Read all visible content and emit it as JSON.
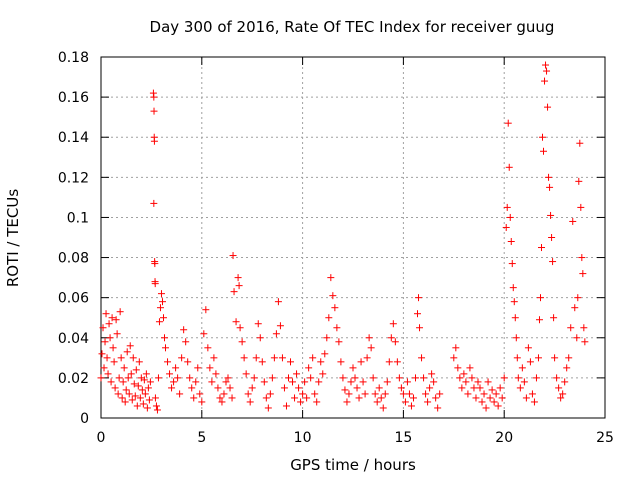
{
  "chart_data": {
    "type": "scatter",
    "title": "Day 300 of 2016, Rate Of TEC Index for receiver guug",
    "xlabel": "GPS time / hours",
    "ylabel": "ROTI / TECUs",
    "xlim": [
      0,
      25
    ],
    "ylim": [
      0,
      0.18
    ],
    "xticks": [
      0,
      5,
      10,
      15,
      20,
      25
    ],
    "xtick_labels": [
      "0",
      "5",
      "10",
      "15",
      "20",
      "25"
    ],
    "yticks": [
      0,
      0.02,
      0.04,
      0.06,
      0.08,
      0.1,
      0.12,
      0.14,
      0.16,
      0.18
    ],
    "ytick_labels": [
      "0",
      "0.02",
      "0.04",
      "0.06",
      "0.08",
      "0.1",
      "0.12",
      "0.14",
      "0.16",
      "0.18"
    ],
    "grid": true,
    "marker": "+",
    "color": "#ff0000",
    "series": [
      {
        "name": "ROTI",
        "points": [
          [
            0.0,
            0.02
          ],
          [
            0.05,
            0.032
          ],
          [
            0.1,
            0.045
          ],
          [
            0.15,
            0.025
          ],
          [
            0.2,
            0.038
          ],
          [
            0.25,
            0.052
          ],
          [
            0.3,
            0.03
          ],
          [
            0.35,
            0.022
          ],
          [
            0.4,
            0.047
          ],
          [
            0.45,
            0.04
          ],
          [
            0.5,
            0.018
          ],
          [
            0.55,
            0.05
          ],
          [
            0.6,
            0.035
          ],
          [
            0.65,
            0.028
          ],
          [
            0.7,
            0.015
          ],
          [
            0.75,
            0.049
          ],
          [
            0.8,
            0.042
          ],
          [
            0.85,
            0.012
          ],
          [
            0.9,
            0.02
          ],
          [
            0.95,
            0.053
          ],
          [
            1.0,
            0.03
          ],
          [
            1.05,
            0.01
          ],
          [
            1.1,
            0.018
          ],
          [
            1.15,
            0.025
          ],
          [
            1.2,
            0.008
          ],
          [
            1.25,
            0.014
          ],
          [
            1.3,
            0.033
          ],
          [
            1.35,
            0.02
          ],
          [
            1.4,
            0.012
          ],
          [
            1.45,
            0.036
          ],
          [
            1.5,
            0.022
          ],
          [
            1.55,
            0.009
          ],
          [
            1.6,
            0.03
          ],
          [
            1.65,
            0.017
          ],
          [
            1.7,
            0.011
          ],
          [
            1.75,
            0.024
          ],
          [
            1.8,
            0.006
          ],
          [
            1.85,
            0.016
          ],
          [
            1.9,
            0.028
          ],
          [
            1.95,
            0.01
          ],
          [
            2.0,
            0.02
          ],
          [
            2.05,
            0.014
          ],
          [
            2.1,
            0.007
          ],
          [
            2.15,
            0.019
          ],
          [
            2.2,
            0.012
          ],
          [
            2.25,
            0.022
          ],
          [
            2.3,
            0.005
          ],
          [
            2.35,
            0.015
          ],
          [
            2.4,
            0.009
          ],
          [
            2.45,
            0.018
          ],
          [
            2.6,
            0.162
          ],
          [
            2.62,
            0.16
          ],
          [
            2.63,
            0.153
          ],
          [
            2.64,
            0.14
          ],
          [
            2.65,
            0.138
          ],
          [
            2.62,
            0.107
          ],
          [
            2.66,
            0.078
          ],
          [
            2.67,
            0.077
          ],
          [
            2.68,
            0.068
          ],
          [
            2.69,
            0.067
          ],
          [
            2.7,
            0.01
          ],
          [
            2.75,
            0.006
          ],
          [
            2.8,
            0.004
          ],
          [
            2.85,
            0.02
          ],
          [
            2.9,
            0.048
          ],
          [
            2.95,
            0.055
          ],
          [
            3.0,
            0.062
          ],
          [
            3.05,
            0.058
          ],
          [
            3.1,
            0.05
          ],
          [
            3.15,
            0.04
          ],
          [
            3.2,
            0.035
          ],
          [
            3.3,
            0.028
          ],
          [
            3.4,
            0.022
          ],
          [
            3.5,
            0.015
          ],
          [
            3.6,
            0.018
          ],
          [
            3.7,
            0.025
          ],
          [
            3.8,
            0.02
          ],
          [
            3.9,
            0.012
          ],
          [
            4.0,
            0.03
          ],
          [
            4.1,
            0.044
          ],
          [
            4.2,
            0.038
          ],
          [
            4.3,
            0.028
          ],
          [
            4.4,
            0.02
          ],
          [
            4.5,
            0.015
          ],
          [
            4.6,
            0.01
          ],
          [
            4.7,
            0.018
          ],
          [
            4.8,
            0.025
          ],
          [
            4.9,
            0.012
          ],
          [
            5.0,
            0.008
          ],
          [
            5.1,
            0.042
          ],
          [
            5.2,
            0.054
          ],
          [
            5.3,
            0.035
          ],
          [
            5.4,
            0.025
          ],
          [
            5.5,
            0.018
          ],
          [
            5.6,
            0.03
          ],
          [
            5.7,
            0.022
          ],
          [
            5.8,
            0.015
          ],
          [
            5.9,
            0.01
          ],
          [
            6.0,
            0.008
          ],
          [
            6.1,
            0.012
          ],
          [
            6.2,
            0.018
          ],
          [
            6.3,
            0.02
          ],
          [
            6.4,
            0.015
          ],
          [
            6.5,
            0.01
          ],
          [
            6.55,
            0.081
          ],
          [
            6.6,
            0.063
          ],
          [
            6.7,
            0.048
          ],
          [
            6.8,
            0.07
          ],
          [
            6.85,
            0.066
          ],
          [
            6.9,
            0.045
          ],
          [
            7.0,
            0.038
          ],
          [
            7.1,
            0.03
          ],
          [
            7.2,
            0.022
          ],
          [
            7.3,
            0.012
          ],
          [
            7.4,
            0.008
          ],
          [
            7.5,
            0.015
          ],
          [
            7.6,
            0.02
          ],
          [
            7.7,
            0.03
          ],
          [
            7.8,
            0.047
          ],
          [
            7.9,
            0.04
          ],
          [
            8.0,
            0.028
          ],
          [
            8.1,
            0.018
          ],
          [
            8.2,
            0.01
          ],
          [
            8.3,
            0.005
          ],
          [
            8.4,
            0.012
          ],
          [
            8.5,
            0.02
          ],
          [
            8.6,
            0.03
          ],
          [
            8.7,
            0.042
          ],
          [
            8.8,
            0.058
          ],
          [
            8.9,
            0.046
          ],
          [
            9.0,
            0.03
          ],
          [
            9.1,
            0.015
          ],
          [
            9.2,
            0.006
          ],
          [
            9.3,
            0.02
          ],
          [
            9.4,
            0.028
          ],
          [
            9.5,
            0.018
          ],
          [
            9.6,
            0.01
          ],
          [
            9.7,
            0.022
          ],
          [
            9.8,
            0.015
          ],
          [
            9.9,
            0.008
          ],
          [
            10.0,
            0.012
          ],
          [
            10.1,
            0.018
          ],
          [
            10.2,
            0.01
          ],
          [
            10.3,
            0.025
          ],
          [
            10.4,
            0.02
          ],
          [
            10.5,
            0.03
          ],
          [
            10.6,
            0.012
          ],
          [
            10.7,
            0.008
          ],
          [
            10.8,
            0.018
          ],
          [
            10.9,
            0.028
          ],
          [
            11.0,
            0.022
          ],
          [
            11.1,
            0.032
          ],
          [
            11.2,
            0.04
          ],
          [
            11.3,
            0.05
          ],
          [
            11.4,
            0.07
          ],
          [
            11.5,
            0.061
          ],
          [
            11.6,
            0.055
          ],
          [
            11.7,
            0.045
          ],
          [
            11.8,
            0.038
          ],
          [
            11.9,
            0.028
          ],
          [
            12.0,
            0.02
          ],
          [
            12.1,
            0.014
          ],
          [
            12.2,
            0.008
          ],
          [
            12.3,
            0.012
          ],
          [
            12.4,
            0.018
          ],
          [
            12.5,
            0.025
          ],
          [
            12.6,
            0.02
          ],
          [
            12.7,
            0.015
          ],
          [
            12.8,
            0.01
          ],
          [
            12.9,
            0.028
          ],
          [
            13.0,
            0.018
          ],
          [
            13.1,
            0.012
          ],
          [
            13.2,
            0.03
          ],
          [
            13.3,
            0.04
          ],
          [
            13.4,
            0.035
          ],
          [
            13.5,
            0.02
          ],
          [
            13.6,
            0.012
          ],
          [
            13.7,
            0.008
          ],
          [
            13.8,
            0.015
          ],
          [
            13.9,
            0.01
          ],
          [
            14.0,
            0.005
          ],
          [
            14.1,
            0.012
          ],
          [
            14.2,
            0.018
          ],
          [
            14.3,
            0.028
          ],
          [
            14.4,
            0.04
          ],
          [
            14.5,
            0.047
          ],
          [
            14.6,
            0.038
          ],
          [
            14.7,
            0.028
          ],
          [
            14.8,
            0.02
          ],
          [
            14.9,
            0.015
          ],
          [
            15.0,
            0.012
          ],
          [
            15.1,
            0.008
          ],
          [
            15.2,
            0.018
          ],
          [
            15.3,
            0.012
          ],
          [
            15.4,
            0.006
          ],
          [
            15.5,
            0.01
          ],
          [
            15.6,
            0.02
          ],
          [
            15.7,
            0.052
          ],
          [
            15.75,
            0.06
          ],
          [
            15.8,
            0.045
          ],
          [
            15.9,
            0.03
          ],
          [
            16.0,
            0.02
          ],
          [
            16.1,
            0.012
          ],
          [
            16.2,
            0.008
          ],
          [
            16.3,
            0.015
          ],
          [
            16.4,
            0.022
          ],
          [
            16.5,
            0.018
          ],
          [
            16.6,
            0.01
          ],
          [
            16.7,
            0.005
          ],
          [
            16.8,
            0.012
          ],
          [
            17.5,
            0.03
          ],
          [
            17.6,
            0.035
          ],
          [
            17.7,
            0.025
          ],
          [
            17.8,
            0.02
          ],
          [
            17.9,
            0.015
          ],
          [
            18.0,
            0.022
          ],
          [
            18.1,
            0.018
          ],
          [
            18.2,
            0.012
          ],
          [
            18.3,
            0.025
          ],
          [
            18.4,
            0.02
          ],
          [
            18.5,
            0.015
          ],
          [
            18.6,
            0.01
          ],
          [
            18.7,
            0.018
          ],
          [
            18.8,
            0.015
          ],
          [
            18.9,
            0.008
          ],
          [
            19.0,
            0.012
          ],
          [
            19.1,
            0.005
          ],
          [
            19.2,
            0.018
          ],
          [
            19.3,
            0.01
          ],
          [
            19.4,
            0.014
          ],
          [
            19.5,
            0.008
          ],
          [
            19.6,
            0.012
          ],
          [
            19.7,
            0.006
          ],
          [
            19.8,
            0.015
          ],
          [
            19.9,
            0.01
          ],
          [
            20.0,
            0.02
          ],
          [
            20.1,
            0.095
          ],
          [
            20.15,
            0.105
          ],
          [
            20.2,
            0.147
          ],
          [
            20.25,
            0.125
          ],
          [
            20.3,
            0.1
          ],
          [
            20.35,
            0.088
          ],
          [
            20.4,
            0.077
          ],
          [
            20.45,
            0.065
          ],
          [
            20.5,
            0.058
          ],
          [
            20.55,
            0.05
          ],
          [
            20.6,
            0.04
          ],
          [
            20.65,
            0.03
          ],
          [
            20.7,
            0.02
          ],
          [
            20.8,
            0.015
          ],
          [
            20.9,
            0.025
          ],
          [
            21.0,
            0.018
          ],
          [
            21.1,
            0.01
          ],
          [
            21.2,
            0.035
          ],
          [
            21.3,
            0.028
          ],
          [
            21.4,
            0.012
          ],
          [
            21.5,
            0.008
          ],
          [
            21.6,
            0.02
          ],
          [
            21.7,
            0.03
          ],
          [
            21.75,
            0.049
          ],
          [
            21.8,
            0.06
          ],
          [
            21.85,
            0.085
          ],
          [
            21.9,
            0.14
          ],
          [
            21.95,
            0.133
          ],
          [
            22.0,
            0.168
          ],
          [
            22.05,
            0.176
          ],
          [
            22.1,
            0.173
          ],
          [
            22.15,
            0.155
          ],
          [
            22.2,
            0.12
          ],
          [
            22.25,
            0.115
          ],
          [
            22.3,
            0.101
          ],
          [
            22.35,
            0.09
          ],
          [
            22.4,
            0.078
          ],
          [
            22.45,
            0.05
          ],
          [
            22.5,
            0.03
          ],
          [
            22.6,
            0.02
          ],
          [
            22.7,
            0.015
          ],
          [
            22.8,
            0.01
          ],
          [
            22.9,
            0.012
          ],
          [
            23.0,
            0.018
          ],
          [
            23.1,
            0.025
          ],
          [
            23.2,
            0.03
          ],
          [
            23.3,
            0.045
          ],
          [
            23.4,
            0.098
          ],
          [
            23.5,
            0.055
          ],
          [
            23.6,
            0.04
          ],
          [
            23.65,
            0.06
          ],
          [
            23.7,
            0.118
          ],
          [
            23.75,
            0.137
          ],
          [
            23.8,
            0.105
          ],
          [
            23.85,
            0.08
          ],
          [
            23.9,
            0.072
          ],
          [
            23.95,
            0.045
          ],
          [
            24.0,
            0.038
          ]
        ]
      }
    ]
  }
}
